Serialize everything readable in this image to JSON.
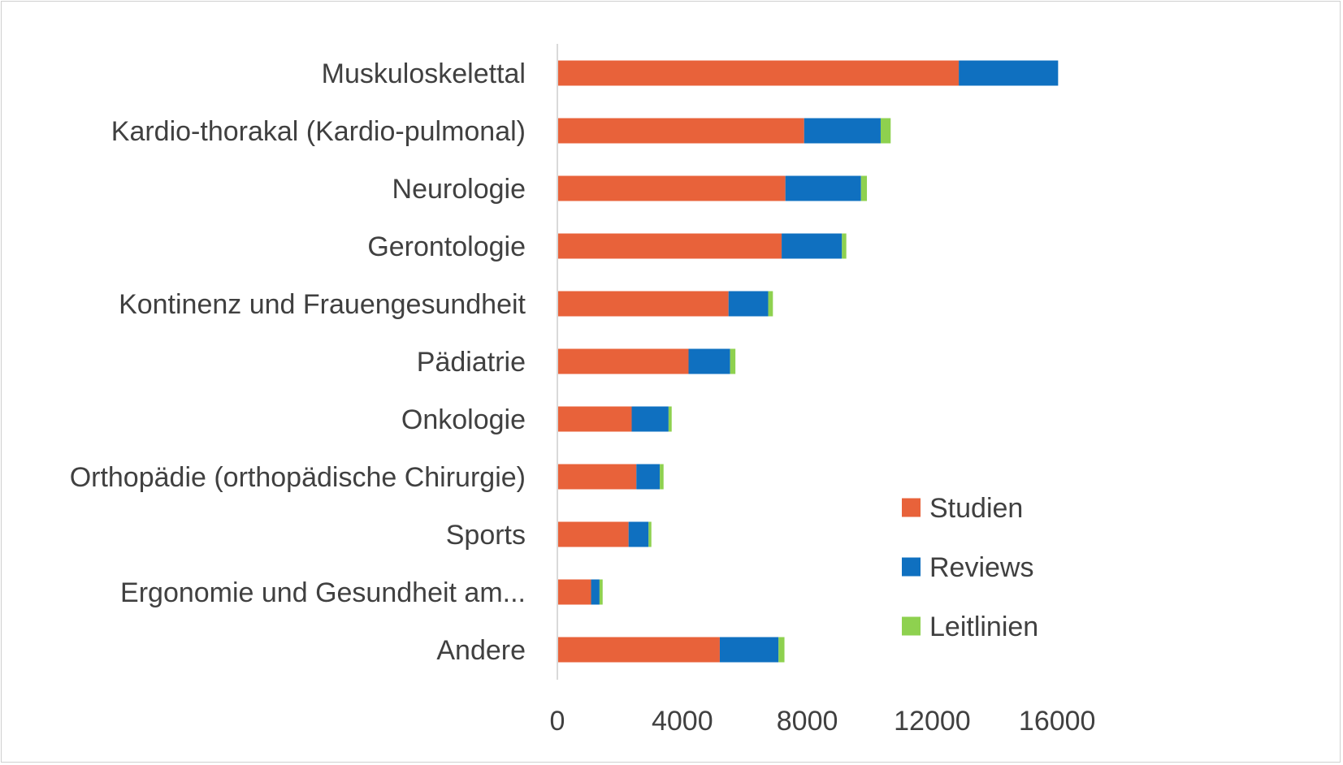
{
  "chart_data": {
    "type": "bar",
    "orientation": "horizontal",
    "stacked": true,
    "categories": [
      "Muskuloskelettal",
      "Kardio-thorakal (Kardio-pulmonal)",
      "Neurologie",
      "Gerontologie",
      "Kontinenz und Frauengesundheit",
      "Pädiatrie",
      "Onkologie",
      "Orthopädie (orthopädische Chirurgie)",
      "Sports",
      "Ergonomie und Gesundheit am...",
      "Andere"
    ],
    "series": [
      {
        "name": "Studien",
        "color": "#E8623A",
        "values": [
          12850,
          7900,
          7300,
          7180,
          5480,
          4200,
          2380,
          2530,
          2280,
          1080,
          5200
        ]
      },
      {
        "name": "Reviews",
        "color": "#0F70C0",
        "values": [
          3180,
          2450,
          2420,
          1930,
          1270,
          1330,
          1180,
          750,
          640,
          270,
          1880
        ]
      },
      {
        "name": "Leitlinien",
        "color": "#8ED14F",
        "values": [
          0,
          320,
          190,
          140,
          150,
          170,
          100,
          120,
          90,
          100,
          190
        ]
      }
    ],
    "xticks": [
      "0",
      "4000",
      "8000",
      "12000",
      "16000"
    ],
    "xlim": [
      0,
      16000
    ],
    "grid": false,
    "legend": "right"
  }
}
